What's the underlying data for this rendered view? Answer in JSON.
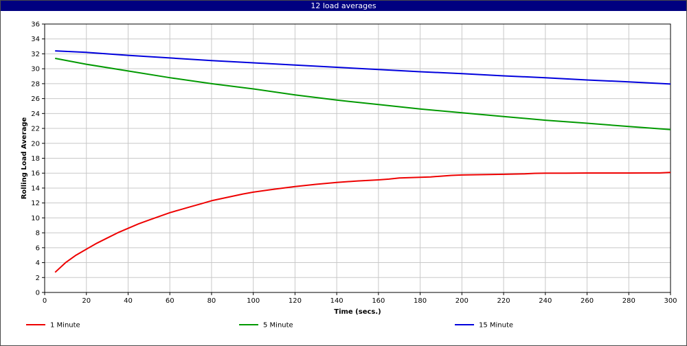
{
  "window": {
    "title": "12 load averages"
  },
  "chart_data": {
    "type": "line",
    "title": "12 load averages",
    "xlabel": "Time (secs.)",
    "ylabel": "Rolling Load Average",
    "xlim": [
      0,
      300
    ],
    "ylim": [
      0,
      36
    ],
    "xticks": [
      0,
      20,
      40,
      60,
      80,
      100,
      120,
      140,
      160,
      180,
      200,
      220,
      240,
      260,
      280,
      300
    ],
    "yticks": [
      0,
      2,
      4,
      6,
      8,
      10,
      12,
      14,
      16,
      18,
      20,
      22,
      24,
      26,
      28,
      30,
      32,
      34,
      36
    ],
    "grid": true,
    "legend_position": "bottom",
    "series": [
      {
        "name": "1 Minute",
        "color": "#ee0000",
        "x": [
          5,
          10,
          15,
          20,
          25,
          30,
          35,
          40,
          45,
          50,
          55,
          60,
          65,
          70,
          75,
          80,
          85,
          90,
          95,
          100,
          110,
          120,
          130,
          140,
          150,
          160,
          165,
          170,
          180,
          185,
          190,
          195,
          200,
          210,
          220,
          230,
          235,
          240,
          250,
          260,
          270,
          280,
          290,
          295,
          300
        ],
        "y": [
          2.7,
          4.0,
          5.0,
          5.8,
          6.6,
          7.3,
          8.0,
          8.6,
          9.2,
          9.7,
          10.2,
          10.7,
          11.1,
          11.5,
          11.9,
          12.3,
          12.6,
          12.9,
          13.2,
          13.45,
          13.85,
          14.2,
          14.5,
          14.75,
          14.95,
          15.1,
          15.2,
          15.35,
          15.45,
          15.5,
          15.6,
          15.7,
          15.75,
          15.8,
          15.85,
          15.9,
          15.97,
          16.0,
          16.0,
          16.02,
          16.02,
          16.02,
          16.03,
          16.03,
          16.1
        ]
      },
      {
        "name": "5 Minute",
        "color": "#009900",
        "x": [
          5,
          20,
          40,
          60,
          80,
          100,
          120,
          140,
          160,
          180,
          200,
          220,
          240,
          260,
          280,
          300
        ],
        "y": [
          31.4,
          30.6,
          29.7,
          28.8,
          28.0,
          27.3,
          26.5,
          25.8,
          25.2,
          24.6,
          24.1,
          23.6,
          23.1,
          22.7,
          22.25,
          21.85
        ]
      },
      {
        "name": "15 Minute",
        "color": "#0000dd",
        "x": [
          5,
          20,
          40,
          60,
          80,
          100,
          120,
          140,
          160,
          180,
          200,
          220,
          240,
          260,
          280,
          300
        ],
        "y": [
          32.4,
          32.2,
          31.8,
          31.45,
          31.1,
          30.8,
          30.5,
          30.2,
          29.9,
          29.6,
          29.35,
          29.05,
          28.8,
          28.5,
          28.25,
          27.95
        ]
      }
    ]
  }
}
